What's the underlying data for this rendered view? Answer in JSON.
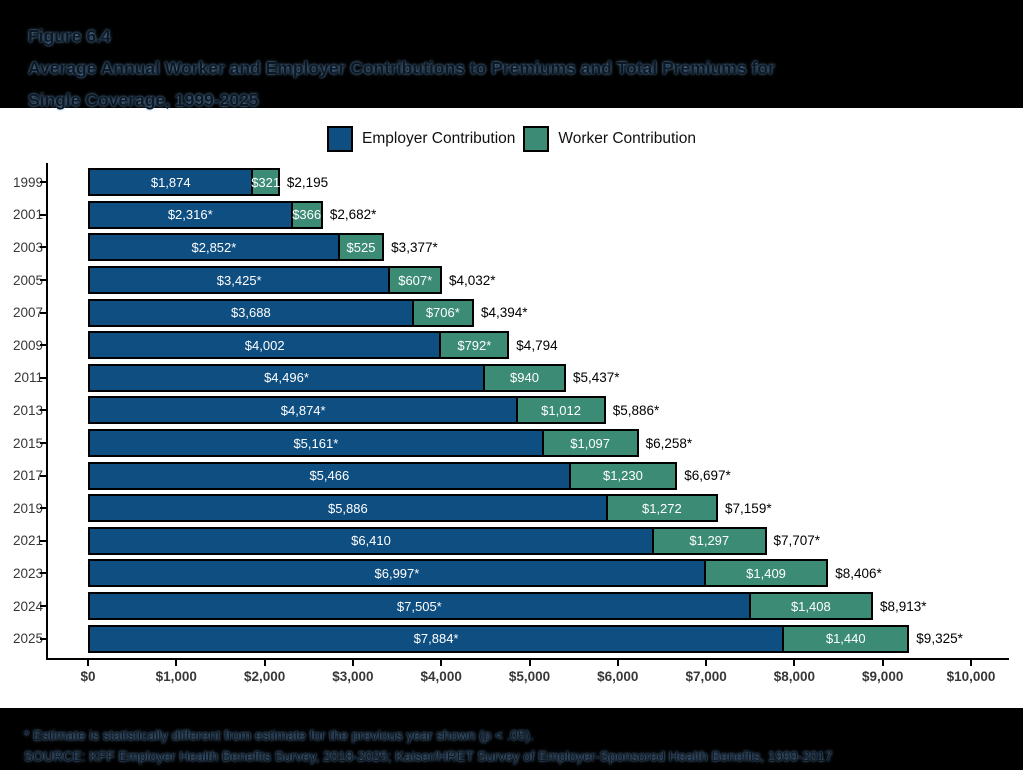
{
  "header": {
    "figure_label": "Figure 6.4",
    "title_line1": "Average Annual Worker and Employer Contributions to Premiums and Total Premiums for",
    "title_line2": "Single Coverage, 1999-2025"
  },
  "legend": {
    "items": [
      {
        "label": "Employer Contribution",
        "color": "#0F4E80"
      },
      {
        "label": "Worker Contribution",
        "color": "#3C8C75"
      }
    ]
  },
  "chart_data": {
    "type": "bar",
    "orientation": "horizontal",
    "stacked": true,
    "title": "Average Annual Worker and Employer Contributions to Premiums and Total Premiums for Single Coverage, 1999-2025",
    "categories": [
      "1999",
      "2001",
      "2003",
      "2005",
      "2007",
      "2009",
      "2011",
      "2013",
      "2015",
      "2017",
      "2019",
      "2021",
      "2023",
      "2024",
      "2025"
    ],
    "series": [
      {
        "name": "Employer Contribution",
        "color": "#0F4E80",
        "values": [
          1874,
          2316,
          2852,
          3425,
          3688,
          4002,
          4496,
          4874,
          5161,
          5466,
          5886,
          6410,
          6997,
          7505,
          7884
        ],
        "labels": [
          "$1,874",
          "$2,316*",
          "$2,852*",
          "$3,425*",
          "$3,688",
          "$4,002",
          "$4,496*",
          "$4,874*",
          "$5,161*",
          "$5,466",
          "$5,886",
          "$6,410",
          "$6,997*",
          "$7,505*",
          "$7,884*"
        ]
      },
      {
        "name": "Worker Contribution",
        "color": "#3C8C75",
        "values": [
          321,
          366,
          525,
          607,
          706,
          792,
          940,
          1012,
          1097,
          1230,
          1272,
          1297,
          1409,
          1408,
          1440
        ],
        "labels": [
          "$321",
          "$366",
          "$525",
          "$607*",
          "$706*",
          "$792*",
          "$940",
          "$1,012",
          "$1,097",
          "$1,230",
          "$1,272",
          "$1,297",
          "$1,409",
          "$1,408",
          "$1,440"
        ]
      }
    ],
    "totals": {
      "values": [
        2195,
        2682,
        3377,
        4032,
        4394,
        4794,
        5437,
        5886,
        6258,
        6697,
        7159,
        7707,
        8406,
        8913,
        9325
      ],
      "labels": [
        "$2,195",
        "$2,682*",
        "$3,377*",
        "$4,032*",
        "$4,394*",
        "$4,794",
        "$5,437*",
        "$5,886*",
        "$6,258*",
        "$6,697*",
        "$7,159*",
        "$7,707*",
        "$8,406*",
        "$8,913*",
        "$9,325*"
      ]
    },
    "xlim": [
      0,
      10000
    ],
    "x_ticks": [
      "$0",
      "$1,000",
      "$2,000",
      "$3,000",
      "$4,000",
      "$5,000",
      "$6,000",
      "$7,000",
      "$8,000",
      "$9,000",
      "$10,000"
    ],
    "grid": false,
    "legend_position": "top"
  },
  "footer": {
    "footnote": "* Estimate is statistically different from estimate for the previous year shown (p < .05).",
    "source": "SOURCE: KFF Employer Health Benefits Survey, 2018-2025; Kaiser/HRET Survey of Employer-Sponsored Health Benefits, 1999-2017"
  }
}
